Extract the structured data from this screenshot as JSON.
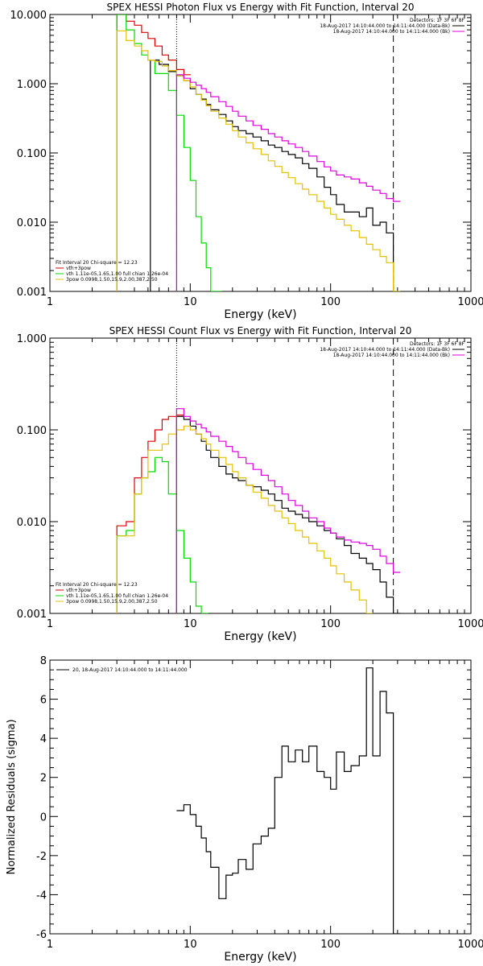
{
  "chart_data": [
    {
      "id": "photon",
      "type": "line",
      "title": "SPEX HESSI Photon Flux vs Energy with Fit Function, Interval 20",
      "xlabel": "Energy (keV)",
      "ylabel": "",
      "xscale": "log",
      "yscale": "log",
      "xlim": [
        1,
        1000
      ],
      "ylim": [
        0.001,
        10
      ],
      "xticks": [
        "1",
        "10",
        "100",
        "1000"
      ],
      "yticks": [
        "0.001",
        "0.010",
        "0.100",
        "1.000",
        "10.000"
      ],
      "header": {
        "detectors": "Detectors: 1F 3F 6F 8F",
        "time1": "18-Aug-2017 14:10:44.000 to 14:11:44.000 (Data-Bk)",
        "time2": "18-Aug-2017 14:10:44.000 to 14:11:44.000 (Bk)"
      },
      "legend": [
        {
          "label": "Fit Interval 20   Chi-square = 12.23",
          "color": "#000000"
        },
        {
          "label": "vth+3pow",
          "color": "#e00000"
        },
        {
          "label": "vth 1.11e-05,1.65,1.00  full chian 1.26e-04",
          "color": "#00dd00"
        },
        {
          "label": "3pow 0.0998,1.50,15.9,2.00,387,2.50",
          "color": "#e6c000"
        }
      ],
      "vlines": [
        {
          "x": 8,
          "style": "dotted",
          "color": "#000000"
        },
        {
          "x": 280,
          "style": "dashed",
          "color": "#000000"
        }
      ],
      "series": [
        {
          "name": "data",
          "color": "#000000",
          "x": [
            5.2,
            6,
            7,
            8,
            9,
            10,
            11,
            12,
            13,
            14,
            16,
            18,
            20,
            22,
            25,
            28,
            32,
            36,
            40,
            45,
            50,
            56,
            63,
            70,
            80,
            90,
            100,
            110,
            125,
            140,
            160,
            180,
            200,
            225,
            250,
            280
          ],
          "y": [
            2.2,
            1.9,
            1.5,
            1.3,
            1.1,
            0.85,
            0.7,
            0.6,
            0.5,
            0.42,
            0.36,
            0.29,
            0.24,
            0.21,
            0.19,
            0.17,
            0.15,
            0.13,
            0.12,
            0.105,
            0.095,
            0.085,
            0.07,
            0.06,
            0.045,
            0.032,
            0.025,
            0.018,
            0.014,
            0.014,
            0.012,
            0.016,
            0.009,
            0.01,
            0.007,
            0.001
          ]
        },
        {
          "name": "vth+3pow",
          "color": "#e00000",
          "x": [
            3,
            3.5,
            4,
            4.5,
            5,
            5.6,
            6.3,
            7,
            8,
            9
          ],
          "y": [
            10,
            8,
            7,
            5.5,
            4.5,
            3.5,
            2.6,
            2.2,
            1.6,
            1.35
          ]
        },
        {
          "name": "vth",
          "color": "#00dd00",
          "x": [
            3,
            3.5,
            4,
            4.5,
            5,
            5.6,
            6.3,
            7,
            8,
            9,
            10,
            11,
            12,
            13,
            14,
            15
          ],
          "y": [
            10,
            6,
            3.8,
            2.6,
            2.2,
            1.4,
            1.4,
            0.8,
            0.35,
            0.12,
            0.04,
            0.012,
            0.005,
            0.0022,
            0.001,
            0.001
          ]
        },
        {
          "name": "3pow",
          "color": "#e6c000",
          "x": [
            3,
            3.5,
            4,
            4.5,
            5,
            5.6,
            6.3,
            7,
            8,
            9,
            10,
            11,
            12,
            13,
            14,
            16,
            18,
            20,
            22,
            25,
            28,
            32,
            36,
            40,
            45,
            50,
            56,
            63,
            70,
            80,
            90,
            100,
            110,
            125,
            140,
            160,
            180,
            200,
            225,
            250,
            280
          ],
          "y": [
            5.8,
            4.2,
            3.5,
            3,
            2.2,
            2.1,
            1.8,
            1.55,
            1.3,
            1.1,
            0.9,
            0.7,
            0.58,
            0.48,
            0.4,
            0.32,
            0.26,
            0.21,
            0.17,
            0.14,
            0.115,
            0.095,
            0.077,
            0.064,
            0.052,
            0.044,
            0.036,
            0.03,
            0.025,
            0.02,
            0.016,
            0.013,
            0.011,
            0.009,
            0.0075,
            0.006,
            0.0048,
            0.004,
            0.0032,
            0.0026,
            0.001
          ]
        },
        {
          "name": "Bk",
          "color": "#dd00dd",
          "x": [
            8,
            9,
            10,
            11,
            12,
            13,
            14,
            16,
            18,
            20,
            22,
            25,
            28,
            32,
            36,
            40,
            45,
            50,
            56,
            63,
            70,
            80,
            90,
            100,
            110,
            125,
            140,
            160,
            180,
            200,
            225,
            250,
            280
          ],
          "y": [
            1.35,
            1.2,
            1.05,
            0.95,
            0.85,
            0.75,
            0.65,
            0.55,
            0.47,
            0.4,
            0.34,
            0.29,
            0.25,
            0.22,
            0.19,
            0.17,
            0.15,
            0.135,
            0.12,
            0.105,
            0.09,
            0.075,
            0.063,
            0.055,
            0.048,
            0.045,
            0.042,
            0.037,
            0.033,
            0.029,
            0.026,
            0.022,
            0.02
          ]
        }
      ]
    },
    {
      "id": "count",
      "type": "line",
      "title": "SPEX HESSI Count Flux vs Energy with Fit Function, Interval 20",
      "xlabel": "Energy (keV)",
      "ylabel": "",
      "xscale": "log",
      "yscale": "log",
      "xlim": [
        1,
        1000
      ],
      "ylim": [
        0.001,
        1
      ],
      "xticks": [
        "1",
        "10",
        "100",
        "1000"
      ],
      "yticks": [
        "0.001",
        "0.010",
        "0.100",
        "1.000"
      ],
      "header": {
        "detectors": "Detectors: 1F 3F 6F 8F",
        "time1": "18-Aug-2017 14:10:44.000 to 14:11:44.000 (Data-Bk)",
        "time2": "18-Aug-2017 14:10:44.000 to 14:11:44.000 (Bk)"
      },
      "legend": [
        {
          "label": "Fit Interval 20   Chi-square = 12.23",
          "color": "#000000"
        },
        {
          "label": "vth+3pow",
          "color": "#e00000"
        },
        {
          "label": "vth 1.11e-05,1.65,1.00  full chian 1.26e-04",
          "color": "#00dd00"
        },
        {
          "label": "3pow 0.0998,1.50,15.9,2.00,387,2.50",
          "color": "#e6c000"
        }
      ],
      "vlines": [
        {
          "x": 8,
          "style": "dotted",
          "color": "#000000"
        },
        {
          "x": 280,
          "style": "dashed",
          "color": "#000000"
        }
      ],
      "series": [
        {
          "name": "data",
          "color": "#000000",
          "x": [
            8,
            9,
            10,
            11,
            12,
            13,
            14,
            16,
            18,
            20,
            22,
            25,
            28,
            32,
            36,
            40,
            45,
            50,
            56,
            63,
            70,
            80,
            90,
            100,
            110,
            125,
            140,
            160,
            180,
            200,
            225,
            250,
            280
          ],
          "y": [
            0.14,
            0.13,
            0.11,
            0.09,
            0.075,
            0.06,
            0.05,
            0.04,
            0.033,
            0.03,
            0.028,
            0.025,
            0.024,
            0.022,
            0.02,
            0.017,
            0.014,
            0.013,
            0.012,
            0.011,
            0.01,
            0.009,
            0.008,
            0.0075,
            0.0065,
            0.0055,
            0.0045,
            0.004,
            0.0035,
            0.003,
            0.0022,
            0.0015,
            0.001
          ]
        },
        {
          "name": "vth+3pow",
          "color": "#e00000",
          "x": [
            3,
            3.5,
            4,
            4.5,
            5,
            5.6,
            6.3,
            7,
            8
          ],
          "y": [
            0.009,
            0.01,
            0.03,
            0.05,
            0.075,
            0.1,
            0.13,
            0.14,
            0.145
          ]
        },
        {
          "name": "vth",
          "color": "#00dd00",
          "x": [
            3,
            3.5,
            4,
            4.5,
            5,
            5.6,
            6.3,
            7,
            8,
            9,
            10,
            11,
            12
          ],
          "y": [
            0.007,
            0.008,
            0.02,
            0.03,
            0.035,
            0.05,
            0.045,
            0.02,
            0.008,
            0.004,
            0.0022,
            0.0012,
            0.001
          ]
        },
        {
          "name": "3pow",
          "color": "#e6c000",
          "x": [
            3,
            3.5,
            4,
            4.5,
            5,
            5.6,
            6.3,
            7,
            8,
            9,
            10,
            11,
            12,
            13,
            14,
            16,
            18,
            20,
            22,
            25,
            28,
            32,
            36,
            40,
            45,
            50,
            56,
            63,
            70,
            80,
            90,
            100,
            110,
            125,
            140,
            160,
            180
          ],
          "y": [
            0.007,
            0.007,
            0.02,
            0.03,
            0.06,
            0.06,
            0.07,
            0.09,
            0.1,
            0.11,
            0.1,
            0.09,
            0.08,
            0.07,
            0.06,
            0.05,
            0.042,
            0.035,
            0.03,
            0.025,
            0.021,
            0.018,
            0.015,
            0.013,
            0.011,
            0.0095,
            0.008,
            0.0068,
            0.0058,
            0.0048,
            0.004,
            0.0033,
            0.0027,
            0.0022,
            0.0018,
            0.0014,
            0.001
          ]
        },
        {
          "name": "Bk",
          "color": "#dd00dd",
          "x": [
            8,
            9,
            10,
            11,
            12,
            13,
            14,
            16,
            18,
            20,
            22,
            25,
            28,
            32,
            36,
            40,
            45,
            50,
            56,
            63,
            70,
            80,
            90,
            100,
            110,
            125,
            140,
            160,
            180,
            200,
            225,
            250,
            280
          ],
          "y": [
            0.17,
            0.14,
            0.125,
            0.115,
            0.105,
            0.095,
            0.085,
            0.075,
            0.066,
            0.058,
            0.05,
            0.043,
            0.037,
            0.032,
            0.028,
            0.024,
            0.02,
            0.017,
            0.015,
            0.013,
            0.011,
            0.01,
            0.0085,
            0.0075,
            0.0068,
            0.0063,
            0.006,
            0.0058,
            0.0055,
            0.005,
            0.0042,
            0.0035,
            0.0028
          ]
        }
      ]
    },
    {
      "id": "resid",
      "type": "line",
      "title": "",
      "xlabel": "Energy (keV)",
      "ylabel": "Normalized Residuals (sigma)",
      "xscale": "log",
      "yscale": "linear",
      "xlim": [
        1,
        1000
      ],
      "ylim": [
        -6,
        8
      ],
      "xticks": [
        "1",
        "10",
        "100",
        "1000"
      ],
      "yticks": [
        "-6",
        "-4",
        "-2",
        "0",
        "2",
        "4",
        "6",
        "8"
      ],
      "legend": [
        {
          "label": "20, 18-Aug-2017 14:10:44.000 to 14:11:44.000",
          "color": "#000000"
        }
      ],
      "series": [
        {
          "name": "residuals",
          "color": "#000000",
          "x": [
            8,
            9,
            10,
            11,
            12,
            13,
            14,
            16,
            18,
            20,
            22,
            25,
            28,
            32,
            36,
            40,
            45,
            50,
            56,
            63,
            70,
            80,
            90,
            100,
            110,
            125,
            140,
            160,
            180,
            200,
            225,
            250,
            280
          ],
          "y": [
            0.3,
            0.6,
            0.1,
            -0.5,
            -1.1,
            -1.8,
            -2.6,
            -4.2,
            -3,
            -2.9,
            -2.2,
            -2.7,
            -1.4,
            -1,
            -0.6,
            2,
            3.6,
            2.8,
            3.4,
            2.8,
            3.6,
            2.3,
            2,
            1.4,
            3.3,
            2.3,
            2.6,
            3.1,
            7.6,
            3.1,
            6.4,
            5.3,
            -6
          ]
        }
      ]
    }
  ]
}
